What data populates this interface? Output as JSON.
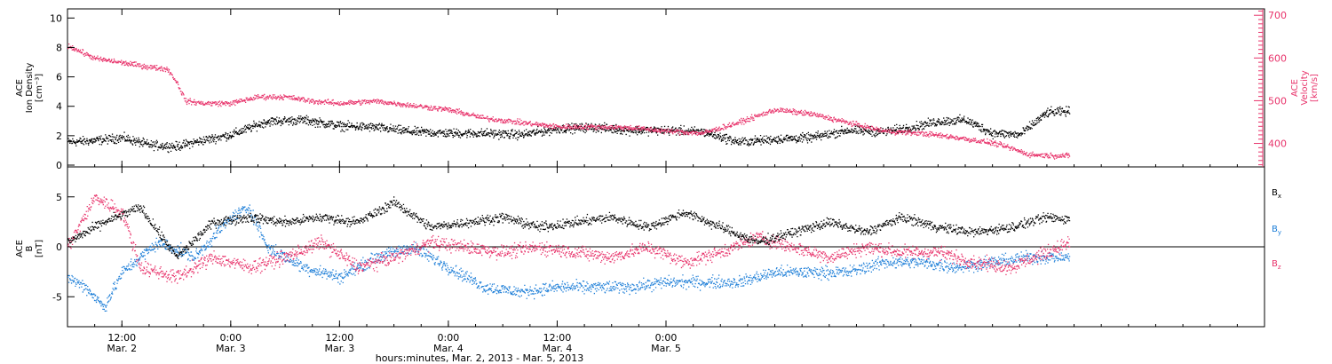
{
  "chart_data": [
    {
      "type": "scatter",
      "panel": "top",
      "left_ylabel": [
        "ACE",
        "Ion Density",
        "[cm⁻³]"
      ],
      "right_ylabel": [
        "ACE",
        "Velocity",
        "[km/s]"
      ],
      "left_yticks": [
        "0",
        "2",
        "4",
        "6",
        "8",
        "10"
      ],
      "left_ylim": [
        0,
        10.5
      ],
      "right_yticks": [
        "400",
        "500",
        "600",
        "700"
      ],
      "right_ylim": [
        345,
        715
      ],
      "grid": false,
      "series": [
        {
          "axis": "left",
          "color": "#000000",
          "x_hours": [
            0,
            3,
            6,
            9,
            12,
            14,
            18,
            22,
            26,
            30,
            34,
            38,
            42,
            46,
            50,
            54,
            58,
            62,
            66,
            70,
            74,
            78,
            82,
            86,
            90,
            93,
            96,
            99,
            102,
            105,
            108,
            110.5
          ],
          "values": [
            1.6,
            1.7,
            1.9,
            1.4,
            1.3,
            1.6,
            2.1,
            3.0,
            3.1,
            2.7,
            2.6,
            2.3,
            2.2,
            2.2,
            2.1,
            2.5,
            2.6,
            2.4,
            2.4,
            2.3,
            1.6,
            1.8,
            1.9,
            2.4,
            2.3,
            2.6,
            3.0,
            3.1,
            2.2,
            2.1,
            3.6,
            3.7
          ]
        },
        {
          "axis": "right",
          "color": "#e8336b",
          "x_hours": [
            0,
            3,
            6,
            9,
            11,
            12,
            13,
            15,
            18,
            21,
            24,
            27,
            30,
            34,
            38,
            42,
            46,
            50,
            54,
            58,
            62,
            66,
            70,
            74,
            78,
            82,
            86,
            90,
            94,
            98,
            102,
            104,
            106,
            108,
            110.5
          ],
          "values": [
            630,
            600,
            590,
            580,
            575,
            545,
            500,
            495,
            495,
            510,
            510,
            500,
            495,
            500,
            490,
            480,
            460,
            450,
            440,
            440,
            438,
            430,
            425,
            450,
            480,
            470,
            450,
            430,
            425,
            415,
            402,
            390,
            375,
            373,
            372
          ]
        }
      ]
    },
    {
      "type": "scatter",
      "panel": "bottom",
      "ylabel": [
        "ACE",
        "B",
        "[nT]"
      ],
      "yticks": [
        "-5",
        "0",
        "5"
      ],
      "ylim": [
        -8,
        8
      ],
      "zero_line": true,
      "grid": false,
      "legend": [
        {
          "text": "B",
          "sub": "x",
          "color": "#000000"
        },
        {
          "text": "B",
          "sub": "y",
          "color": "#1e7fd8"
        },
        {
          "text": "B",
          "sub": "z",
          "color": "#e8336b"
        }
      ],
      "series": [
        {
          "name": "Bx",
          "color": "#000000",
          "x_hours": [
            0,
            4,
            8,
            12,
            16,
            20,
            24,
            28,
            32,
            36,
            40,
            44,
            48,
            52,
            56,
            60,
            64,
            68,
            72,
            76,
            80,
            84,
            88,
            92,
            96,
            100,
            104,
            108,
            110.5
          ],
          "values": [
            0.5,
            2.5,
            4.0,
            -1.0,
            2.5,
            3.0,
            2.5,
            3.0,
            2.5,
            4.5,
            2.0,
            2.5,
            3.0,
            2.0,
            2.5,
            3.0,
            2.0,
            3.5,
            2.0,
            0.5,
            1.5,
            2.5,
            1.5,
            3.0,
            2.0,
            1.5,
            2.0,
            3.0,
            2.8
          ]
        },
        {
          "name": "By",
          "color": "#1e7fd8",
          "x_hours": [
            0,
            2,
            4,
            6,
            10,
            14,
            18,
            20,
            22,
            26,
            30,
            34,
            38,
            42,
            46,
            50,
            54,
            58,
            62,
            66,
            70,
            74,
            78,
            82,
            86,
            90,
            94,
            98,
            102,
            106,
            110.5
          ],
          "values": [
            -3.0,
            -4.0,
            -6.0,
            -2.5,
            0.5,
            -1.0,
            3.0,
            4.0,
            0.0,
            -2.0,
            -3.0,
            -1.0,
            0.0,
            -2.0,
            -4.0,
            -4.5,
            -4.0,
            -4.0,
            -4.0,
            -3.5,
            -3.5,
            -3.5,
            -2.5,
            -2.5,
            -2.5,
            -1.5,
            -1.5,
            -2.0,
            -1.5,
            -1.0,
            -1.0
          ]
        },
        {
          "name": "Bz",
          "color": "#e8336b",
          "x_hours": [
            0,
            3,
            6,
            8,
            12,
            16,
            20,
            24,
            28,
            32,
            36,
            40,
            44,
            48,
            52,
            56,
            60,
            64,
            68,
            72,
            76,
            80,
            84,
            88,
            92,
            96,
            100,
            104,
            108,
            110.5
          ],
          "values": [
            0.0,
            5.0,
            3.5,
            -2.0,
            -3.0,
            -1.0,
            -2.0,
            -1.0,
            0.5,
            -2.0,
            -1.0,
            0.5,
            0.0,
            -0.5,
            0.0,
            -0.5,
            -1.0,
            0.0,
            -1.5,
            -0.5,
            1.0,
            0.0,
            -1.0,
            0.0,
            -0.5,
            -0.5,
            -1.5,
            -2.0,
            -0.5,
            0.5
          ]
        }
      ]
    }
  ],
  "xaxis": {
    "ticks": [
      {
        "hour": 6,
        "time": "12:00",
        "date": "Mar. 2"
      },
      {
        "hour": 18,
        "time": "0:00",
        "date": "Mar. 3"
      },
      {
        "hour": 30,
        "time": "12:00",
        "date": "Mar. 3"
      },
      {
        "hour": 42,
        "time": "0:00",
        "date": "Mar. 4"
      },
      {
        "hour": 54,
        "time": "12:00",
        "date": "Mar. 4"
      },
      {
        "hour": 66,
        "time": "0:00",
        "date": "Mar. 5"
      }
    ],
    "xlabel": "hours:minutes, Mar.  2, 2013 - Mar.  5, 2013"
  }
}
